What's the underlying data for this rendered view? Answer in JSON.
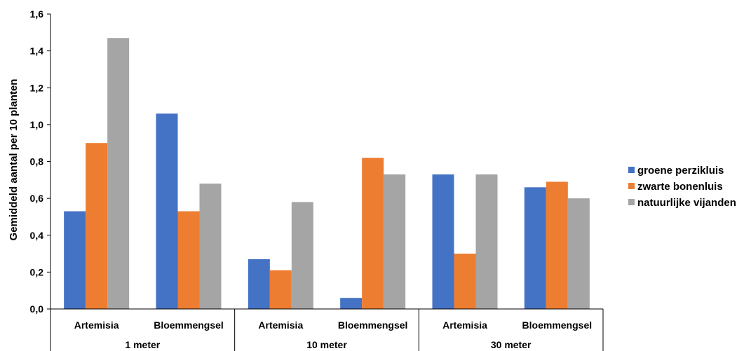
{
  "chart_data": {
    "type": "bar",
    "title": "",
    "ylabel": "Gemiddeld aantal per 10 planten",
    "ylim": [
      0,
      1.6
    ],
    "ytick_step": 0.2,
    "ytick_labels": [
      "0,0",
      "0,2",
      "0,4",
      "0,6",
      "0,8",
      "1,0",
      "1,2",
      "1,4",
      "1,6"
    ],
    "groups": [
      {
        "label": "1 meter",
        "categories": [
          "Artemisia",
          "Bloemmengsel"
        ]
      },
      {
        "label": "10 meter",
        "categories": [
          "Artemisia",
          "Bloemmengsel"
        ]
      },
      {
        "label": "30 meter",
        "categories": [
          "Artemisia",
          "Bloemmengsel"
        ]
      }
    ],
    "categories": [
      "Artemisia",
      "Bloemmengsel",
      "Artemisia",
      "Bloemmengsel",
      "Artemisia",
      "Bloemmengsel"
    ],
    "series": [
      {
        "name": "groene perzikluis",
        "color": "#4472C4",
        "values": [
          0.53,
          1.06,
          0.27,
          0.06,
          0.73,
          0.66
        ]
      },
      {
        "name": "zwarte bonenluis",
        "color": "#ED7D31",
        "values": [
          0.9,
          0.53,
          0.21,
          0.82,
          0.3,
          0.69
        ]
      },
      {
        "name": "natuurlijke vijanden",
        "color": "#A5A5A5",
        "values": [
          1.47,
          0.68,
          0.58,
          0.73,
          0.73,
          0.6
        ]
      }
    ],
    "legend_position": "right",
    "grid": false
  }
}
